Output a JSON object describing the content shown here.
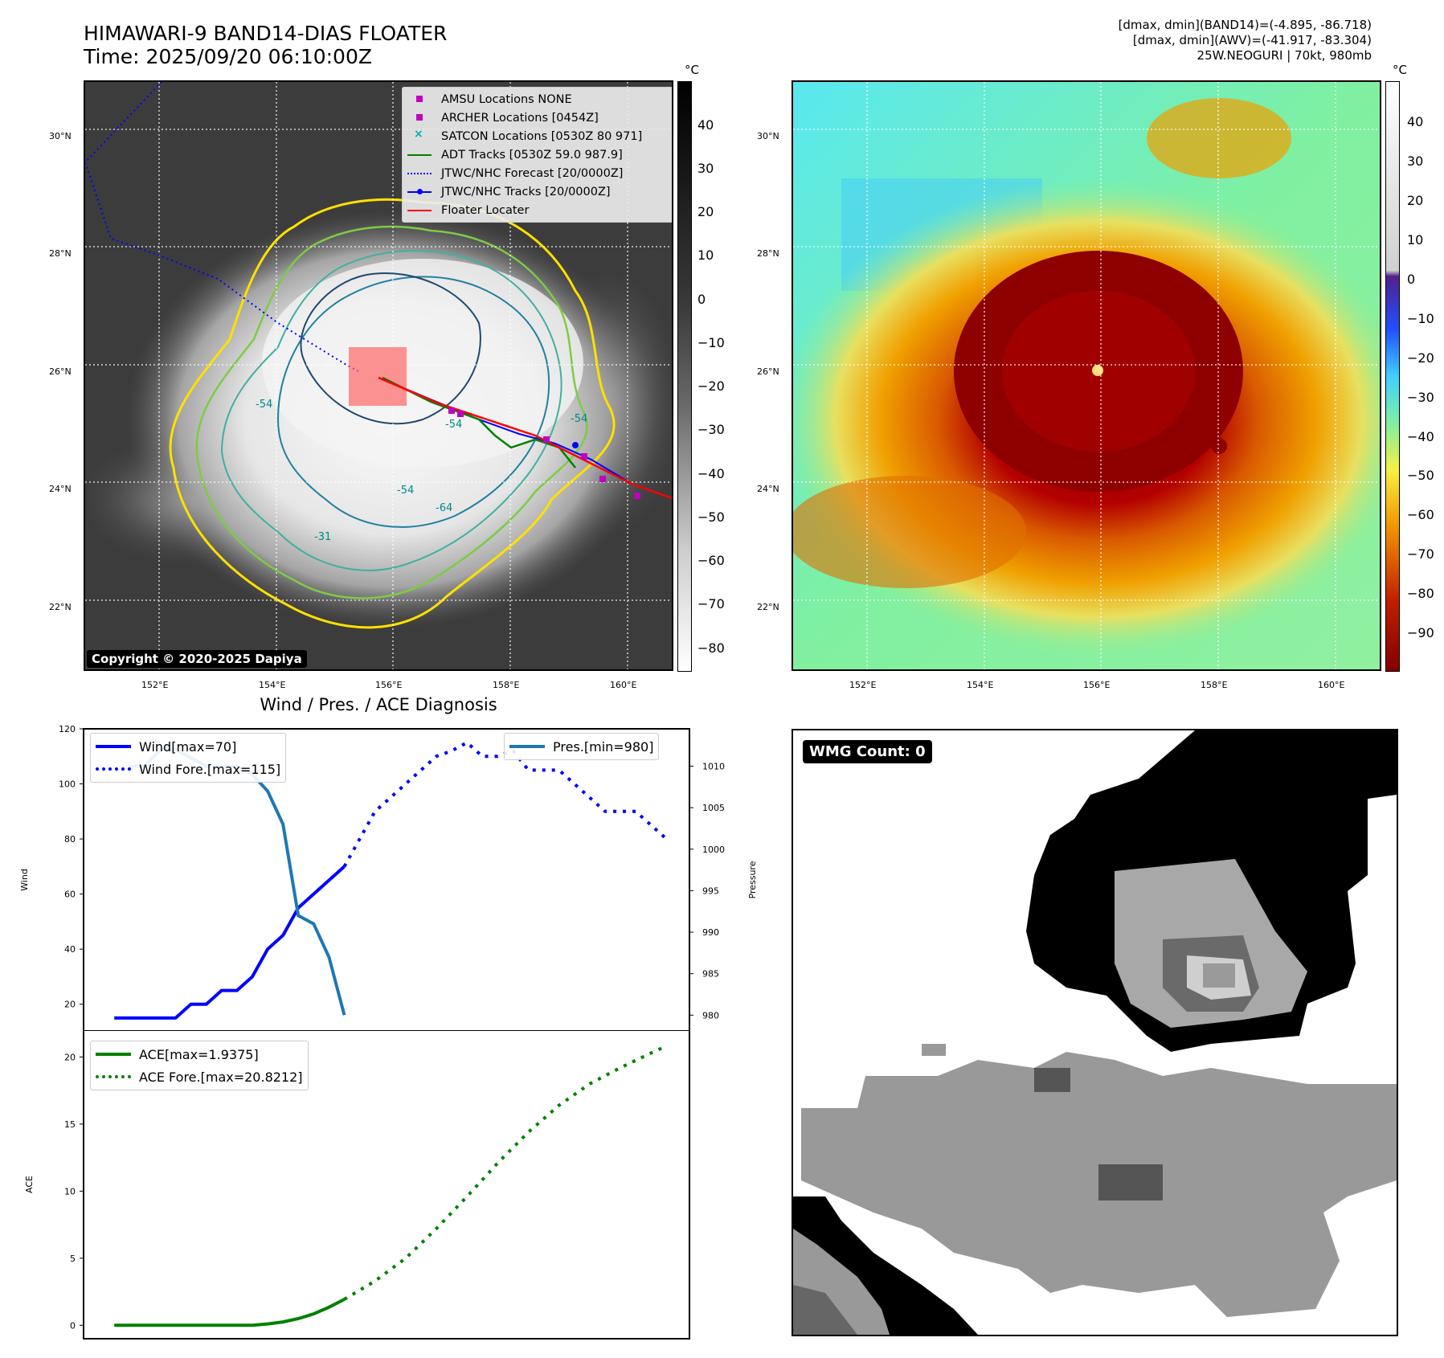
{
  "header": {
    "title_line1": "HIMAWARI-9 BAND14-DIAS FLOATER",
    "title_line2": "Time: 2025/09/20 06:10:00Z",
    "info_line1": "[dmax, dmin](BAND14)=(-4.895, -86.718)",
    "info_line2": "[dmax, dmin](AWV)=(-41.917, -83.304)",
    "info_line3": "25W.NEOGURI | 70kt, 980mb"
  },
  "map_axes": {
    "lat_labels": [
      "30°N",
      "28°N",
      "26°N",
      "24°N",
      "22°N"
    ],
    "lon_labels": [
      "152°E",
      "154°E",
      "156°E",
      "158°E",
      "160°E"
    ]
  },
  "ir_panel": {
    "legend": [
      {
        "label": "AMSU Locations NONE",
        "symbol": "square",
        "color": "#c000c0"
      },
      {
        "label": "ARCHER Locations [0454Z]",
        "symbol": "square",
        "color": "#c000c0"
      },
      {
        "label": "SATCON Locations [0530Z 80 971]",
        "symbol": "x",
        "color": "#00b0b0"
      },
      {
        "label": "ADT Tracks [0530Z 59.0 987.9]",
        "symbol": "line",
        "color": "#008000"
      },
      {
        "label": "JTWC/NHC Forecast [20/0000Z]",
        "symbol": "dotted",
        "color": "#0000ff"
      },
      {
        "label": "JTWC/NHC Tracks [20/0000Z]",
        "symbol": "line-dot",
        "color": "#0000ff"
      },
      {
        "label": "Floater Locater",
        "symbol": "line",
        "color": "#ff0000"
      }
    ],
    "copyright": "Copyright © 2020-2025 Dapiya",
    "contour_labels": [
      "-54",
      "-54",
      "-54",
      "-64",
      "-31",
      "-54"
    ]
  },
  "colorbar_left": {
    "unit": "°C",
    "ticks": [
      "40",
      "30",
      "20",
      "10",
      "0",
      "−10",
      "−20",
      "−30",
      "−40",
      "−50",
      "−60",
      "−70",
      "−80"
    ]
  },
  "colorbar_right": {
    "unit": "°C",
    "ticks": [
      "40",
      "30",
      "20",
      "10",
      "0",
      "−10",
      "−20",
      "−30",
      "−40",
      "−50",
      "−60",
      "−70",
      "−80",
      "−90"
    ]
  },
  "wmg_panel": {
    "badge": "WMG Count: 0"
  },
  "chart_data": [
    {
      "type": "line",
      "title": "Wind / Pres. / ACE Diagnosis",
      "ylabel": "Wind",
      "ylabel_right": "Pressure",
      "ylim": [
        10,
        120
      ],
      "ylim_right": [
        978,
        1014.5
      ],
      "yticks": [
        "20",
        "40",
        "60",
        "80",
        "100",
        "120"
      ],
      "yticks_right": [
        "980",
        "985",
        "990",
        "995",
        "1000",
        "1005",
        "1010"
      ],
      "series": [
        {
          "name": "Wind[max=70]",
          "style": "solid",
          "color": "#0000ff",
          "axis": "left",
          "x": [
            0,
            1,
            2,
            3,
            4,
            5,
            6,
            7,
            8,
            9,
            10,
            11,
            12,
            13,
            14,
            15
          ],
          "values": [
            15,
            15,
            15,
            15,
            15,
            20,
            20,
            25,
            25,
            30,
            40,
            45,
            55,
            60,
            65,
            70
          ]
        },
        {
          "name": "Wind Fore.[max=115]",
          "style": "dotted",
          "color": "#0000ff",
          "axis": "left",
          "x": [
            15,
            16,
            17,
            18,
            19,
            20,
            21,
            22,
            23,
            24,
            25,
            26,
            27,
            28,
            29,
            30,
            31,
            32,
            33,
            34,
            35,
            36
          ],
          "values": [
            70,
            80,
            90,
            95,
            100,
            105,
            110,
            112,
            115,
            110,
            110,
            112,
            105,
            105,
            105,
            100,
            95,
            90,
            90,
            90,
            85,
            80
          ]
        },
        {
          "name": "Pres.[min=980]",
          "style": "solid",
          "color": "#1f77b4",
          "axis": "right",
          "x": [
            1,
            2,
            3,
            4,
            5,
            6,
            7,
            8,
            9,
            10,
            11,
            12,
            13,
            14,
            15
          ],
          "values": [
            1010,
            1010,
            1012,
            1012,
            1011,
            1010,
            1010,
            1010,
            1009,
            1007,
            1003,
            992,
            991,
            987,
            980
          ]
        }
      ]
    },
    {
      "type": "line",
      "ylabel": "ACE",
      "ylim": [
        -1,
        22
      ],
      "yticks": [
        "0",
        "5",
        "10",
        "15",
        "20"
      ],
      "series": [
        {
          "name": "ACE[max=1.9375]",
          "style": "solid",
          "color": "#008000",
          "x": [
            0,
            3,
            6,
            9,
            10,
            11,
            12,
            13,
            14,
            15
          ],
          "values": [
            0,
            0,
            0,
            0,
            0.1,
            0.25,
            0.5,
            0.85,
            1.35,
            1.9375
          ]
        },
        {
          "name": "ACE Fore.[max=20.8212]",
          "style": "dotted",
          "color": "#008000",
          "x": [
            15,
            17,
            19,
            21,
            23,
            25,
            27,
            29,
            31,
            33,
            35,
            36
          ],
          "values": [
            1.9375,
            3.3,
            5.0,
            7.2,
            9.6,
            12.1,
            14.4,
            16.4,
            18.0,
            19.2,
            20.3,
            20.8212
          ]
        }
      ]
    }
  ],
  "colors": {
    "wind": "#0000ff",
    "pressure": "#1f77b4",
    "ace": "#008000",
    "floater_box": "#ff6666"
  }
}
